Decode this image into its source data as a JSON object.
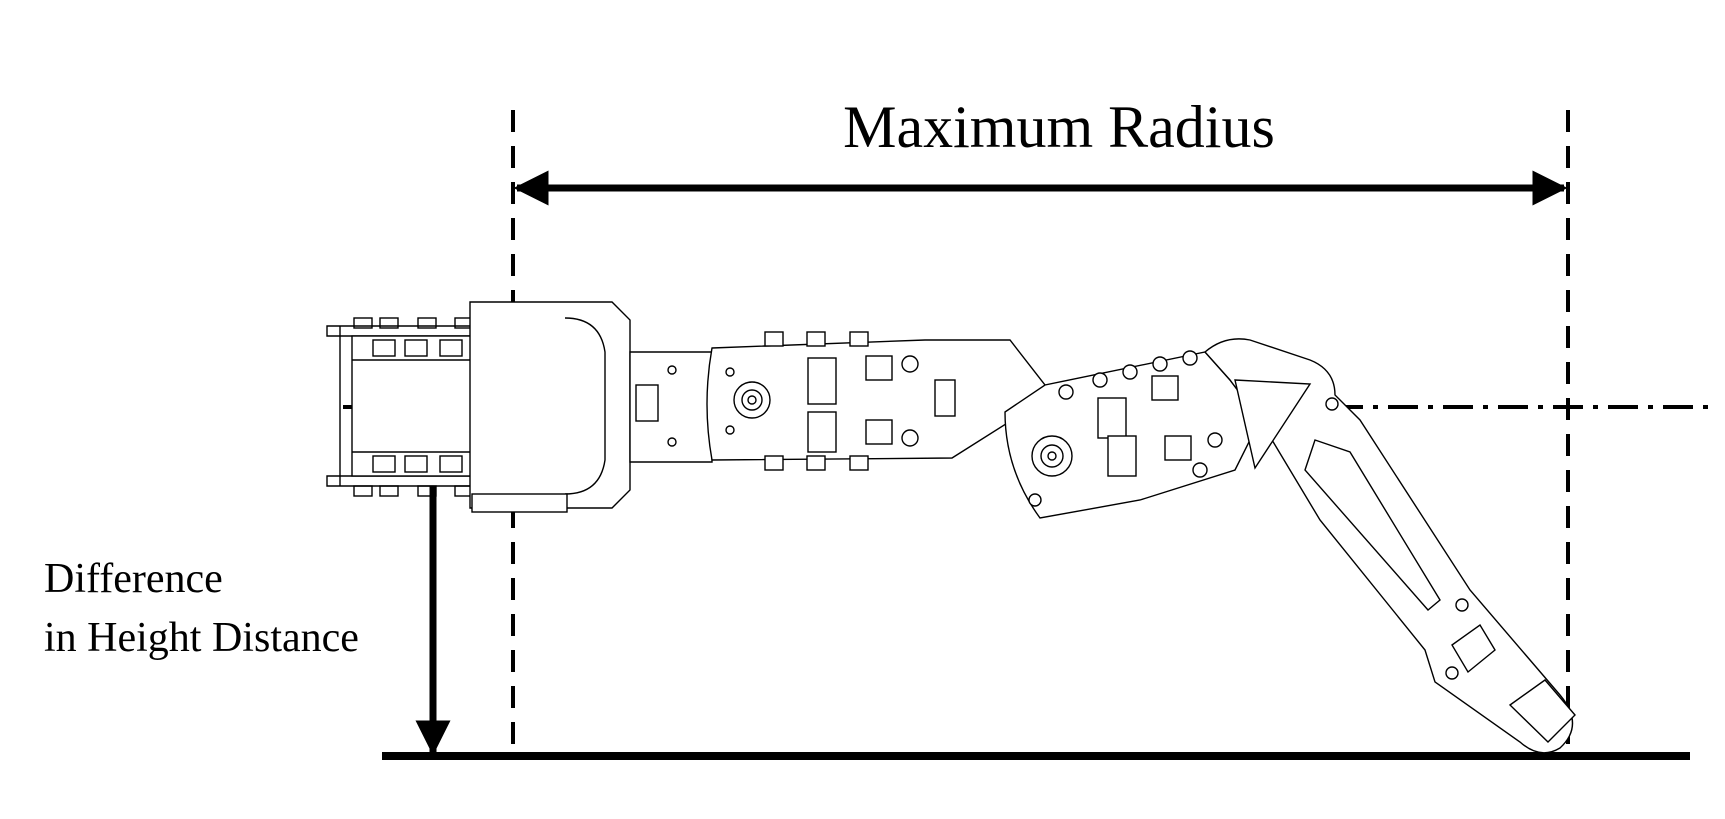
{
  "labels": {
    "maximum_radius": "Maximum Radius",
    "height_line1": "Difference",
    "height_line2": "in Height Distance"
  },
  "colors": {
    "ink": "#000000",
    "background": "#ffffff",
    "part_fill": "#ffffff"
  }
}
